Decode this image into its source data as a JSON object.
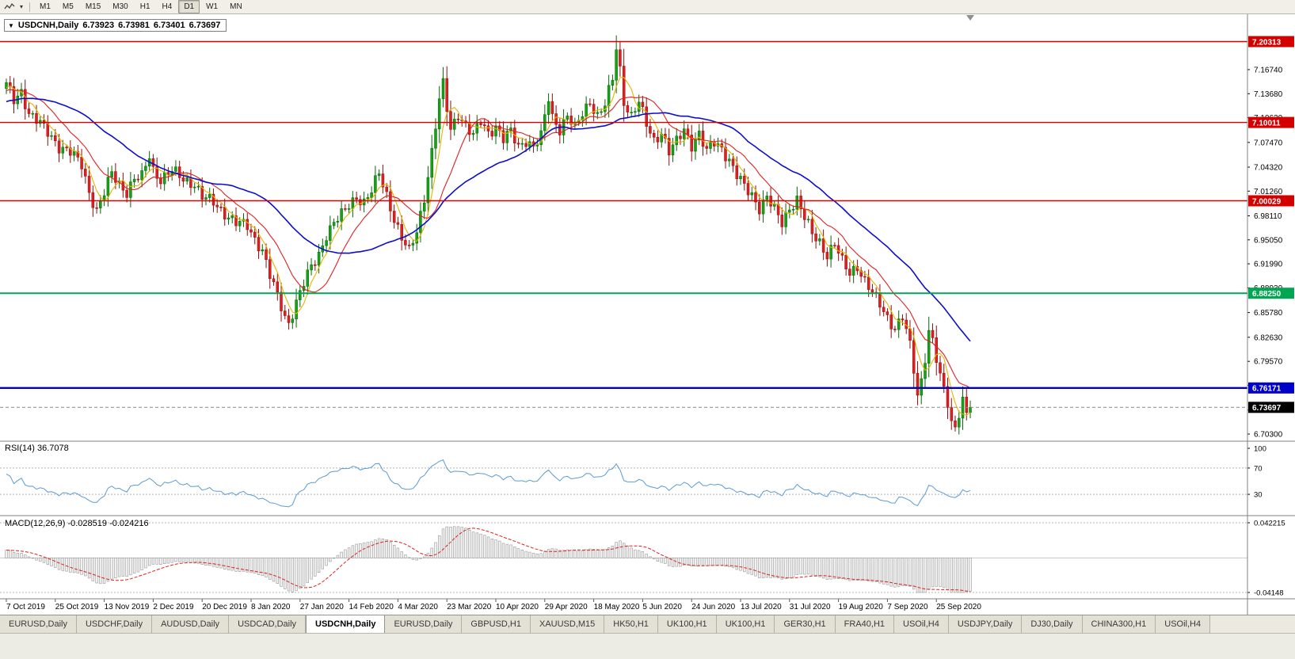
{
  "toolbar": {
    "timeframes": [
      "M1",
      "M5",
      "M15",
      "M30",
      "H1",
      "H4",
      "D1",
      "W1",
      "MN"
    ],
    "active_timeframe": "D1"
  },
  "chart": {
    "title_symbol": "USDCNH,Daily",
    "ohlc": {
      "open": "6.73923",
      "high": "6.73981",
      "low": "6.73401",
      "close": "6.73697"
    }
  },
  "price_axis": {
    "ticks": [
      "7.16740",
      "7.13680",
      "7.10620",
      "7.07470",
      "7.04320",
      "7.01260",
      "6.98110",
      "6.95050",
      "6.91990",
      "6.88930",
      "6.85780",
      "6.82630",
      "6.79570",
      "6.76510",
      "6.73360",
      "6.70300"
    ],
    "levels": [
      {
        "name": "resistance-line-1",
        "label": "7.20313",
        "value": 7.20313,
        "line_color": "#d40000",
        "badge_color": "#d40000",
        "line_width": 1.6,
        "dashed": false
      },
      {
        "name": "resistance-line-2",
        "label": "7.10011",
        "value": 7.10011,
        "line_color": "#d40000",
        "badge_color": "#d40000",
        "line_width": 1.4,
        "dashed": false
      },
      {
        "name": "resistance-line-3",
        "label": "7.00029",
        "value": 7.00029,
        "line_color": "#d40000",
        "badge_color": "#d40000",
        "line_width": 1.4,
        "dashed": false
      },
      {
        "name": "support-line-green",
        "label": "6.88250",
        "value": 6.8825,
        "line_color": "#00a651",
        "badge_color": "#00a651",
        "line_width": 2,
        "dashed": false
      },
      {
        "name": "support-line-blue",
        "label": "6.76171",
        "value": 6.76171,
        "line_color": "#0000b4",
        "badge_color": "#0000c8",
        "line_width": 2.4,
        "dashed": false
      },
      {
        "name": "current-price",
        "label": "6.73697",
        "value": 6.73697,
        "line_color": "#888888",
        "badge_color": "#000000",
        "line_width": 1,
        "dashed": true
      }
    ]
  },
  "date_axis": {
    "labels": [
      "7 Oct 2019",
      "25 Oct 2019",
      "13 Nov 2019",
      "2 Dec 2019",
      "20 Dec 2019",
      "8 Jan 2020",
      "27 Jan 2020",
      "14 Feb 2020",
      "4 Mar 2020",
      "23 Mar 2020",
      "10 Apr 2020",
      "29 Apr 2020",
      "18 May 2020",
      "5 Jun 2020",
      "24 Jun 2020",
      "13 Jul 2020",
      "31 Jul 2020",
      "19 Aug 2020",
      "7 Sep 2020",
      "25 Sep 2020"
    ]
  },
  "rsi": {
    "label": "RSI(14) 36.7078",
    "period": 14,
    "current_value": "36.7078",
    "ticks": [
      "100",
      "70",
      "30"
    ],
    "dotted_levels": [
      70,
      30
    ]
  },
  "macd": {
    "label": "MACD(12,26,9) -0.028519 -0.024216",
    "fast": 12,
    "slow": 26,
    "signal": 9,
    "current_main": "-0.028519",
    "current_signal": "-0.024216",
    "ticks": [
      "0.042215",
      "-0.04148"
    ]
  },
  "tabs": {
    "active_index": 4,
    "items": [
      "EURUSD,Daily",
      "USDCHF,Daily",
      "AUDUSD,Daily",
      "USDCAD,Daily",
      "USDCNH,Daily",
      "EURUSD,Daily",
      "GBPUSD,H1",
      "XAUUSD,M15",
      "HK50,H1",
      "UK100,H1",
      "UK100,H1",
      "GER30,H1",
      "FRA40,H1",
      "USOil,H4",
      "USDJPY,Daily",
      "DJ30,Daily",
      "CHINA300,H1",
      "USOil,H4"
    ]
  },
  "chart_data": {
    "type": "candlestick",
    "symbol": "USDCNH",
    "timeframe": "Daily",
    "title": "USDCNH,Daily 6.73923 6.73981 6.73401 6.73697",
    "last_close": 6.73697,
    "bar_count": 257,
    "prehistory_bars": 60,
    "wiggle": 0.006,
    "price_axis_range": {
      "top": 7.238,
      "bottom": 6.6939
    },
    "horizontal_levels": [
      7.20313,
      7.10011,
      7.00029,
      6.8825,
      6.76171,
      6.73697
    ],
    "ma_periods": {
      "fast": 5,
      "mid": 13,
      "slow": 34
    },
    "rsi_period": 14,
    "macd_periods": [
      12,
      26,
      9
    ],
    "macd_axis_range": {
      "max": 0.042215,
      "min": -0.04148
    },
    "price_path_anchors": [
      [
        -60,
        7.06
      ],
      [
        -45,
        7.088
      ],
      [
        -30,
        7.108
      ],
      [
        -15,
        7.13
      ],
      [
        -5,
        7.142
      ],
      [
        0,
        7.148
      ],
      [
        2,
        7.128
      ],
      [
        4,
        7.14
      ],
      [
        6,
        7.112
      ],
      [
        9,
        7.098
      ],
      [
        12,
        7.082
      ],
      [
        14,
        7.07
      ],
      [
        17,
        7.062
      ],
      [
        20,
        7.046
      ],
      [
        22,
        7.012
      ],
      [
        24,
        6.988
      ],
      [
        26,
        7.01
      ],
      [
        28,
        7.035
      ],
      [
        30,
        7.022
      ],
      [
        32,
        7.012
      ],
      [
        34,
        7.028
      ],
      [
        36,
        7.03
      ],
      [
        38,
        7.058
      ],
      [
        39,
        7.04
      ],
      [
        41,
        7.028
      ],
      [
        44,
        7.038
      ],
      [
        47,
        7.028
      ],
      [
        50,
        7.022
      ],
      [
        52,
        7.005
      ],
      [
        55,
        6.998
      ],
      [
        58,
        6.985
      ],
      [
        61,
        6.972
      ],
      [
        64,
        6.968
      ],
      [
        66,
        6.952
      ],
      [
        68,
        6.938
      ],
      [
        70,
        6.905
      ],
      [
        72,
        6.878
      ],
      [
        74,
        6.852
      ],
      [
        75,
        6.845
      ],
      [
        77,
        6.872
      ],
      [
        79,
        6.895
      ],
      [
        81,
        6.915
      ],
      [
        83,
        6.932
      ],
      [
        85,
        6.958
      ],
      [
        87,
        6.972
      ],
      [
        89,
        6.982
      ],
      [
        91,
        6.995
      ],
      [
        93,
        7.006
      ],
      [
        95,
        6.998
      ],
      [
        97,
        7.012
      ],
      [
        99,
        7.035
      ],
      [
        101,
        7.008
      ],
      [
        103,
        6.978
      ],
      [
        105,
        6.952
      ],
      [
        107,
        6.935
      ],
      [
        109,
        6.962
      ],
      [
        111,
        7.005
      ],
      [
        113,
        7.062
      ],
      [
        115,
        7.128
      ],
      [
        116,
        7.148
      ],
      [
        117,
        7.118
      ],
      [
        118,
        7.092
      ],
      [
        120,
        7.112
      ],
      [
        122,
        7.095
      ],
      [
        124,
        7.082
      ],
      [
        126,
        7.102
      ],
      [
        128,
        7.088
      ],
      [
        130,
        7.095
      ],
      [
        132,
        7.078
      ],
      [
        134,
        7.088
      ],
      [
        136,
        7.07
      ],
      [
        138,
        7.078
      ],
      [
        140,
        7.068
      ],
      [
        142,
        7.082
      ],
      [
        144,
        7.132
      ],
      [
        145,
        7.108
      ],
      [
        147,
        7.092
      ],
      [
        149,
        7.108
      ],
      [
        151,
        7.092
      ],
      [
        153,
        7.112
      ],
      [
        155,
        7.128
      ],
      [
        157,
        7.108
      ],
      [
        159,
        7.122
      ],
      [
        161,
        7.155
      ],
      [
        162,
        7.196
      ],
      [
        163,
        7.168
      ],
      [
        164,
        7.128
      ],
      [
        166,
        7.108
      ],
      [
        168,
        7.125
      ],
      [
        170,
        7.098
      ],
      [
        172,
        7.078
      ],
      [
        174,
        7.088
      ],
      [
        176,
        7.062
      ],
      [
        178,
        7.075
      ],
      [
        180,
        7.092
      ],
      [
        182,
        7.072
      ],
      [
        184,
        7.085
      ],
      [
        186,
        7.062
      ],
      [
        188,
        7.075
      ],
      [
        190,
        7.068
      ],
      [
        192,
        7.052
      ],
      [
        194,
        7.032
      ],
      [
        196,
        7.018
      ],
      [
        198,
        7.008
      ],
      [
        200,
        6.992
      ],
      [
        202,
        7.005
      ],
      [
        204,
        6.988
      ],
      [
        206,
        6.972
      ],
      [
        208,
        6.992
      ],
      [
        210,
        7.002
      ],
      [
        212,
        6.978
      ],
      [
        214,
        6.958
      ],
      [
        216,
        6.948
      ],
      [
        218,
        6.932
      ],
      [
        220,
        6.945
      ],
      [
        222,
        6.922
      ],
      [
        224,
        6.908
      ],
      [
        226,
        6.918
      ],
      [
        228,
        6.898
      ],
      [
        230,
        6.882
      ],
      [
        232,
        6.868
      ],
      [
        234,
        6.852
      ],
      [
        236,
        6.838
      ],
      [
        238,
        6.852
      ],
      [
        240,
        6.815
      ],
      [
        241,
        6.785
      ],
      [
        242,
        6.752
      ],
      [
        243,
        6.772
      ],
      [
        244,
        6.802
      ],
      [
        245,
        6.835
      ],
      [
        246,
        6.822
      ],
      [
        247,
        6.798
      ],
      [
        248,
        6.775
      ],
      [
        249,
        6.758
      ],
      [
        250,
        6.742
      ],
      [
        251,
        6.718
      ],
      [
        252,
        6.712
      ],
      [
        253,
        6.732
      ],
      [
        254,
        6.748
      ],
      [
        255,
        6.728
      ],
      [
        256,
        6.737
      ]
    ],
    "colors": {
      "up": "#15a215",
      "up_stroke": "#076607",
      "down": "#e02020",
      "down_stroke": "#8e0d0d",
      "ma_fast": "#e6b400",
      "ma_mid": "#e02020",
      "ma_slow": "#0d0dcd",
      "rsi_line": "#5a9bd4",
      "macd_bar_fill": "#f1f1f1",
      "macd_bar_stroke": "#9a9a9a",
      "macd_signal": "#e02020",
      "separator": "#808080",
      "dotted_level": "#b4b4b4",
      "axis_text": "#000000"
    }
  }
}
